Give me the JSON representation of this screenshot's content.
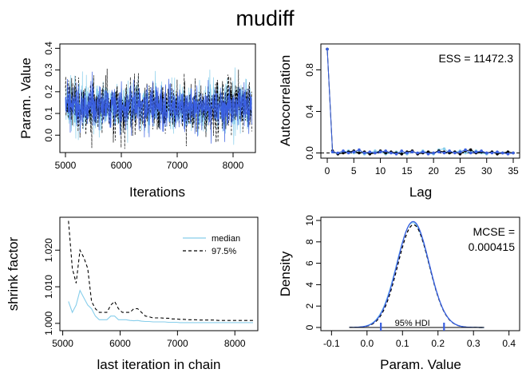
{
  "title": "mudiff",
  "colors": {
    "chain1": "#87CEEB",
    "chain2": "#000000",
    "chain3": "#3A5FE0",
    "line": "#000000"
  },
  "chart_data": [
    {
      "id": "trace",
      "type": "line",
      "xlabel": "Iterations",
      "ylabel": "Param. Value",
      "xlim": [
        4900,
        8400
      ],
      "ylim": [
        -0.08,
        0.42
      ],
      "xticks": [
        5000,
        6000,
        7000,
        8000
      ],
      "yticks": [
        0.0,
        0.1,
        0.2,
        0.3,
        0.4
      ],
      "ytick_labels": [
        "0.0",
        "0.1",
        "0.2",
        "0.3",
        "0.4"
      ],
      "series": [
        {
          "color_key": "chain1",
          "style": "solid",
          "center": 0.13,
          "spread": 0.055
        },
        {
          "color_key": "chain2",
          "style": "dashed",
          "center": 0.13,
          "spread": 0.055
        },
        {
          "color_key": "chain3",
          "style": "solid",
          "center": 0.13,
          "spread": 0.048
        }
      ],
      "x_range": [
        5000,
        8334
      ]
    },
    {
      "id": "autocorr",
      "type": "line",
      "xlabel": "Lag",
      "ylabel": "Autocorrelation",
      "annotation": "ESS = 11472.3",
      "xlim": [
        -1.2,
        36.2
      ],
      "ylim": [
        -0.05,
        1.05
      ],
      "xticks": [
        0,
        5,
        10,
        15,
        20,
        25,
        30,
        35
      ],
      "yticks": [
        0.0,
        0.4,
        0.8
      ],
      "ytick_labels": [
        "0.0",
        "0.4",
        "0.8"
      ],
      "lags": [
        0,
        1,
        2,
        3,
        4,
        5,
        6,
        7,
        8,
        9,
        10,
        11,
        12,
        13,
        14,
        15,
        16,
        17,
        18,
        19,
        20,
        21,
        22,
        23,
        24,
        25,
        26,
        27,
        28,
        29,
        30,
        31,
        32,
        33,
        34,
        35
      ],
      "series": [
        {
          "color_key": "chain1",
          "values": [
            1.0,
            0.01,
            -0.01,
            0.01,
            0.02,
            0.0,
            0.01,
            -0.01,
            0.0,
            0.02,
            0.01,
            -0.01,
            0.0,
            0.01,
            0.0,
            -0.01,
            0.01,
            0.0,
            0.02,
            0.0,
            -0.01,
            0.03,
            0.04,
            0.0,
            0.01,
            0.02,
            0.0,
            0.01,
            0.02,
            0.0,
            -0.01,
            0.01,
            0.0,
            0.0,
            0.01,
            0.0
          ]
        },
        {
          "color_key": "chain2",
          "values": [
            1.0,
            0.02,
            -0.01,
            0.0,
            0.01,
            0.02,
            0.0,
            0.01,
            -0.01,
            0.0,
            0.02,
            0.0,
            0.01,
            0.0,
            -0.01,
            0.01,
            0.02,
            -0.01,
            0.0,
            0.01,
            0.0,
            0.02,
            0.01,
            0.0,
            0.01,
            -0.01,
            0.02,
            0.03,
            0.0,
            0.01,
            0.0,
            0.01,
            -0.01,
            0.0,
            0.01,
            0.0
          ]
        },
        {
          "color_key": "chain3",
          "values": [
            1.0,
            0.01,
            0.0,
            0.02,
            0.0,
            0.01,
            0.03,
            0.0,
            0.01,
            0.0,
            0.01,
            0.02,
            0.0,
            -0.01,
            0.02,
            0.0,
            0.01,
            0.0,
            0.01,
            -0.01,
            0.0,
            0.01,
            0.0,
            0.02,
            0.0,
            0.01,
            0.03,
            0.0,
            0.01,
            0.02,
            0.0,
            0.0,
            0.01,
            0.0,
            -0.01,
            0.0
          ]
        }
      ],
      "zero_line": true
    },
    {
      "id": "gelman",
      "type": "line",
      "xlabel": "last iteration in chain",
      "ylabel": "shrink factor",
      "xlim": [
        4950,
        8400
      ],
      "ylim": [
        0.998,
        1.029
      ],
      "xticks": [
        5000,
        6000,
        7000,
        8000
      ],
      "yticks": [
        1.0,
        1.01,
        1.02
      ],
      "ytick_labels": [
        "1.000",
        "1.010",
        "1.020"
      ],
      "legend": {
        "position": "top-right",
        "entries": [
          {
            "label": "median",
            "color_key": "chain1",
            "style": "solid"
          },
          {
            "label": "97.5%",
            "color_key": "chain2",
            "style": "dashed"
          }
        ]
      },
      "x": [
        5100,
        5167,
        5234,
        5301,
        5368,
        5435,
        5502,
        5569,
        5636,
        5703,
        5770,
        5837,
        5904,
        5971,
        6038,
        6105,
        6172,
        6239,
        6306,
        6373,
        6440,
        6507,
        6574,
        6641,
        6708,
        6775,
        6842,
        6909,
        6976,
        7043,
        7110,
        7177,
        7244,
        7311,
        7378,
        7445,
        7512,
        7579,
        7646,
        7713,
        7780,
        7847,
        7914,
        7981,
        8048,
        8115,
        8182,
        8249,
        8316
      ],
      "median": [
        1.006,
        1.003,
        1.005,
        1.009,
        1.007,
        1.005,
        1.004,
        1.002,
        1.001,
        1.001,
        1.001,
        1.002,
        1.002,
        1.001,
        1.001,
        1.001,
        1.0008,
        1.0007,
        1.0008,
        1.0006,
        1.0005,
        1.0005,
        1.0004,
        1.0004,
        1.0004,
        1.0004,
        1.0003,
        1.0003,
        1.0003,
        1.0002,
        1.0002,
        1.0002,
        1.0002,
        1.0002,
        1.0002,
        1.0002,
        1.0002,
        1.0002,
        1.0002,
        1.0002,
        1.0002,
        1.0002,
        1.0002,
        1.0002,
        1.0002,
        1.0002,
        1.0002,
        1.0002,
        1.0002
      ],
      "upper": [
        1.028,
        1.015,
        1.011,
        1.02,
        1.018,
        1.015,
        1.006,
        1.004,
        1.003,
        1.003,
        1.003,
        1.005,
        1.006,
        1.004,
        1.003,
        1.003,
        1.003,
        1.004,
        1.004,
        1.003,
        1.002,
        1.0018,
        1.0015,
        1.0015,
        1.0015,
        1.0014,
        1.0014,
        1.0012,
        1.0012,
        1.0011,
        1.0011,
        1.001,
        1.001,
        1.001,
        1.0009,
        1.0009,
        1.0009,
        1.0009,
        1.0009,
        1.0008,
        1.0008,
        1.0008,
        1.0008,
        1.0008,
        1.0008,
        1.0008,
        1.0008,
        1.0008,
        1.0008
      ]
    },
    {
      "id": "density",
      "type": "line",
      "xlabel": "Param. Value",
      "ylabel": "Density",
      "annotation_lines": [
        "MCSE =",
        "0.000415"
      ],
      "hdi_label": "95% HDI",
      "hdi": [
        0.039,
        0.217
      ],
      "xlim": [
        -0.13,
        0.43
      ],
      "ylim": [
        -0.3,
        10.3
      ],
      "xticks": [
        -0.1,
        0.0,
        0.1,
        0.2,
        0.3,
        0.4
      ],
      "xtick_labels": [
        "-0.1",
        "0.0",
        "0.1",
        "0.2",
        "0.3",
        "0.4"
      ],
      "yticks": [
        0,
        2,
        4,
        6,
        8,
        10
      ],
      "ytick_labels": [
        "0",
        "2",
        "4",
        "6",
        "8",
        "10"
      ],
      "series": [
        {
          "color_key": "chain1",
          "style": "solid",
          "mean": 0.129,
          "sd": 0.0455,
          "peak": 9.8
        },
        {
          "color_key": "chain2",
          "style": "dashed",
          "mean": 0.131,
          "sd": 0.0445,
          "peak": 9.6
        },
        {
          "color_key": "chain3",
          "style": "solid",
          "mean": 0.13,
          "sd": 0.045,
          "peak": 9.9
        }
      ]
    }
  ]
}
